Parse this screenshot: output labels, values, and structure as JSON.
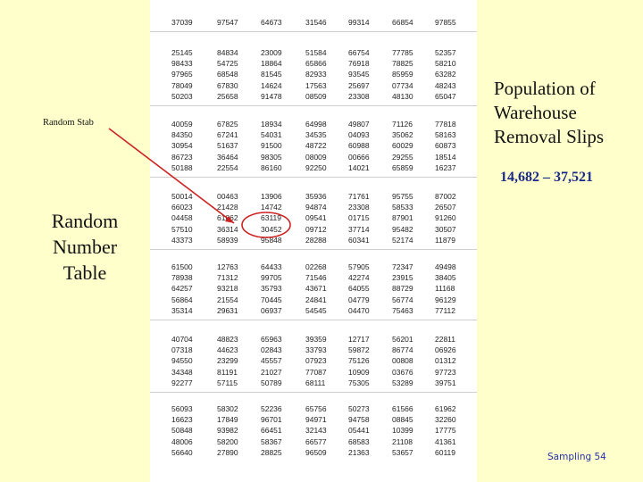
{
  "slide": {
    "side_title_lines": [
      "Random",
      "Number",
      "Table"
    ],
    "stab_label": "Random Stab",
    "right_title_lines": [
      "Population of",
      "Warehouse",
      "Removal Slips"
    ],
    "range": "14,682 – 37,521",
    "footer": "Sampling 54",
    "accent_color": "#cc2222",
    "range_color": "#1a2a88",
    "background_color": "#ffffcc"
  },
  "table": {
    "blocks": [
      [
        [
          "37039",
          "97547",
          "64673",
          "31546",
          "99314",
          "66854",
          "97855"
        ]
      ],
      [
        [
          "25145",
          "84834",
          "23009",
          "51584",
          "66754",
          "77785",
          "52357"
        ],
        [
          "98433",
          "54725",
          "18864",
          "65866",
          "76918",
          "78825",
          "58210"
        ],
        [
          "97965",
          "68548",
          "81545",
          "82933",
          "93545",
          "85959",
          "63282"
        ],
        [
          "78049",
          "67830",
          "14624",
          "17563",
          "25697",
          "07734",
          "48243"
        ],
        [
          "50203",
          "25658",
          "91478",
          "08509",
          "23308",
          "48130",
          "65047"
        ]
      ],
      [
        [
          "40059",
          "67825",
          "18934",
          "64998",
          "49807",
          "71126",
          "77818"
        ],
        [
          "84350",
          "67241",
          "54031",
          "34535",
          "04093",
          "35062",
          "58163"
        ],
        [
          "30954",
          "51637",
          "91500",
          "48722",
          "60988",
          "60029",
          "60873"
        ],
        [
          "86723",
          "36464",
          "98305",
          "08009",
          "00666",
          "29255",
          "18514"
        ],
        [
          "50188",
          "22554",
          "86160",
          "92250",
          "14021",
          "65859",
          "16237"
        ]
      ],
      [
        [
          "50014",
          "00463",
          "13906",
          "35936",
          "71761",
          "95755",
          "87002"
        ],
        [
          "66023",
          "21428",
          "14742",
          "94874",
          "23308",
          "58533",
          "26507"
        ],
        [
          "04458",
          "61862",
          "63119",
          "09541",
          "01715",
          "87901",
          "91260"
        ],
        [
          "57510",
          "36314",
          "30452",
          "09712",
          "37714",
          "95482",
          "30507"
        ],
        [
          "43373",
          "58939",
          "95848",
          "28288",
          "60341",
          "52174",
          "11879"
        ]
      ],
      [
        [
          "61500",
          "12763",
          "64433",
          "02268",
          "57905",
          "72347",
          "49498"
        ],
        [
          "78938",
          "71312",
          "99705",
          "71546",
          "42274",
          "23915",
          "38405"
        ],
        [
          "64257",
          "93218",
          "35793",
          "43671",
          "64055",
          "88729",
          "11168"
        ],
        [
          "56864",
          "21554",
          "70445",
          "24841",
          "04779",
          "56774",
          "96129"
        ],
        [
          "35314",
          "29631",
          "06937",
          "54545",
          "04470",
          "75463",
          "77112"
        ]
      ],
      [
        [
          "40704",
          "48823",
          "65963",
          "39359",
          "12717",
          "56201",
          "22811"
        ],
        [
          "07318",
          "44623",
          "02843",
          "33793",
          "59872",
          "86774",
          "06926"
        ],
        [
          "94550",
          "23299",
          "45557",
          "07923",
          "75126",
          "00808",
          "01312"
        ],
        [
          "34348",
          "81191",
          "21027",
          "77087",
          "10909",
          "03676",
          "97723"
        ],
        [
          "92277",
          "57115",
          "50789",
          "68111",
          "75305",
          "53289",
          "39751"
        ]
      ],
      [
        [
          "56093",
          "58302",
          "52236",
          "65756",
          "50273",
          "61566",
          "61962"
        ],
        [
          "16623",
          "17849",
          "96701",
          "94971",
          "94758",
          "08845",
          "32260"
        ],
        [
          "50848",
          "93982",
          "66451",
          "32143",
          "05441",
          "10399",
          "17775"
        ],
        [
          "48006",
          "58200",
          "58367",
          "66577",
          "68583",
          "21108",
          "41361"
        ],
        [
          "56640",
          "27890",
          "28825",
          "96509",
          "21363",
          "53657",
          "60119"
        ]
      ]
    ]
  }
}
